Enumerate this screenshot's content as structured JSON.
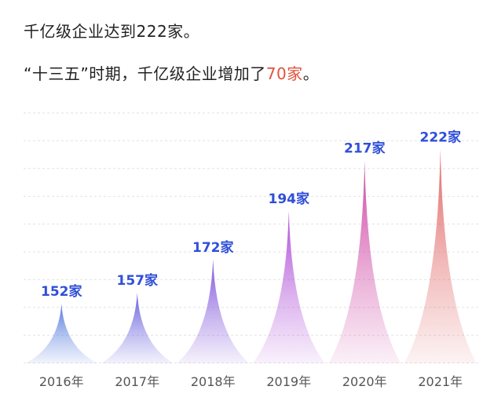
{
  "headline": {
    "line1": "千亿级企业达到222家。",
    "line2_prefix": "“十三五”时期，千亿级企业增加了",
    "line2_highlight": "70家",
    "line2_suffix": "。"
  },
  "colors": {
    "text": "#222222",
    "highlight": "#e0533c",
    "value_label": "#2f4fd8",
    "axis_label": "#555555",
    "grid": "#e2e2e2",
    "spikes": [
      "#5b7fe0",
      "#6a62dd",
      "#8459dc",
      "#b052d8",
      "#d04aa6",
      "#e26a6a"
    ]
  },
  "chart_data": {
    "type": "bar",
    "categories": [
      "2016年",
      "2017年",
      "2018年",
      "2019年",
      "2020年",
      "2021年"
    ],
    "values": [
      152,
      157,
      172,
      194,
      217,
      222
    ],
    "value_labels": [
      "152家",
      "157家",
      "172家",
      "194家",
      "217家",
      "222家"
    ],
    "ylim": [
      125,
      225
    ],
    "grid": true,
    "xlabel": "",
    "ylabel": ""
  }
}
